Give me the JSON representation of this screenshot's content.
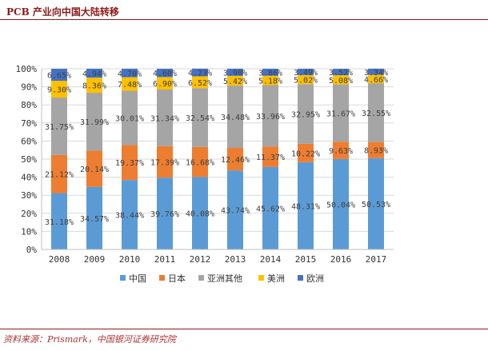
{
  "page": {
    "title": "PCB 产业向中国大陆转移",
    "source": "资料来源：Prismark，中国银河证券研究院"
  },
  "chart_data": {
    "type": "bar",
    "stacked": true,
    "categories": [
      "2008",
      "2009",
      "2010",
      "2011",
      "2012",
      "2013",
      "2014",
      "2015",
      "2016",
      "2017"
    ],
    "ylim": [
      0,
      100
    ],
    "yticks": [
      "0%",
      "10%",
      "20%",
      "30%",
      "40%",
      "50%",
      "60%",
      "70%",
      "80%",
      "90%",
      "100%"
    ],
    "legend_position": "bottom",
    "series": [
      {
        "name": "中国",
        "color": "#5b9bd5",
        "values": [
          31.18,
          34.57,
          38.44,
          39.76,
          40.08,
          43.74,
          45.62,
          48.31,
          50.04,
          50.53
        ],
        "labels": [
          "31.18%",
          "34.57%",
          "38.44%",
          "39.76%",
          "40.08%",
          "43.74%",
          "45.62%",
          "48.31%",
          "50.04%",
          "50.53%"
        ]
      },
      {
        "name": "日本",
        "color": "#ed7d31",
        "values": [
          21.12,
          20.14,
          19.37,
          17.39,
          16.68,
          12.46,
          11.37,
          10.22,
          9.63,
          8.93
        ],
        "labels": [
          "21.12%",
          "20.14%",
          "19.37%",
          "17.39%",
          "16.68%",
          "12.46%",
          "11.37%",
          "10.22%",
          "9.63%",
          "8.93%"
        ]
      },
      {
        "name": "亚洲其他",
        "color": "#a5a5a5",
        "values": [
          31.75,
          31.99,
          30.01,
          31.34,
          32.54,
          34.48,
          33.96,
          32.95,
          31.67,
          32.55
        ],
        "labels": [
          "31.75%",
          "31.99%",
          "30.01%",
          "31.34%",
          "32.54%",
          "34.48%",
          "33.96%",
          "32.95%",
          "31.67%",
          "32.55%"
        ]
      },
      {
        "name": "美洲",
        "color": "#ffc000",
        "values": [
          9.3,
          8.36,
          7.48,
          6.9,
          6.52,
          5.42,
          5.18,
          5.02,
          5.08,
          4.66
        ],
        "labels": [
          "9.30%",
          "8.36%",
          "7.48%",
          "6.90%",
          "6.52%",
          "5.42%",
          "5.18%",
          "5.02%",
          "5.08%",
          "4.66%"
        ]
      },
      {
        "name": "欧洲",
        "color": "#4472c4",
        "values": [
          6.65,
          4.94,
          4.7,
          4.6,
          4.23,
          3.9,
          3.86,
          3.49,
          3.52,
          3.34
        ],
        "labels": [
          "6.65%",
          "4.94%",
          "4.70%",
          "4.60%",
          "4.23%",
          "3.90%",
          "3.86%",
          "3.49%",
          "3.52%",
          "3.34%"
        ]
      }
    ]
  }
}
